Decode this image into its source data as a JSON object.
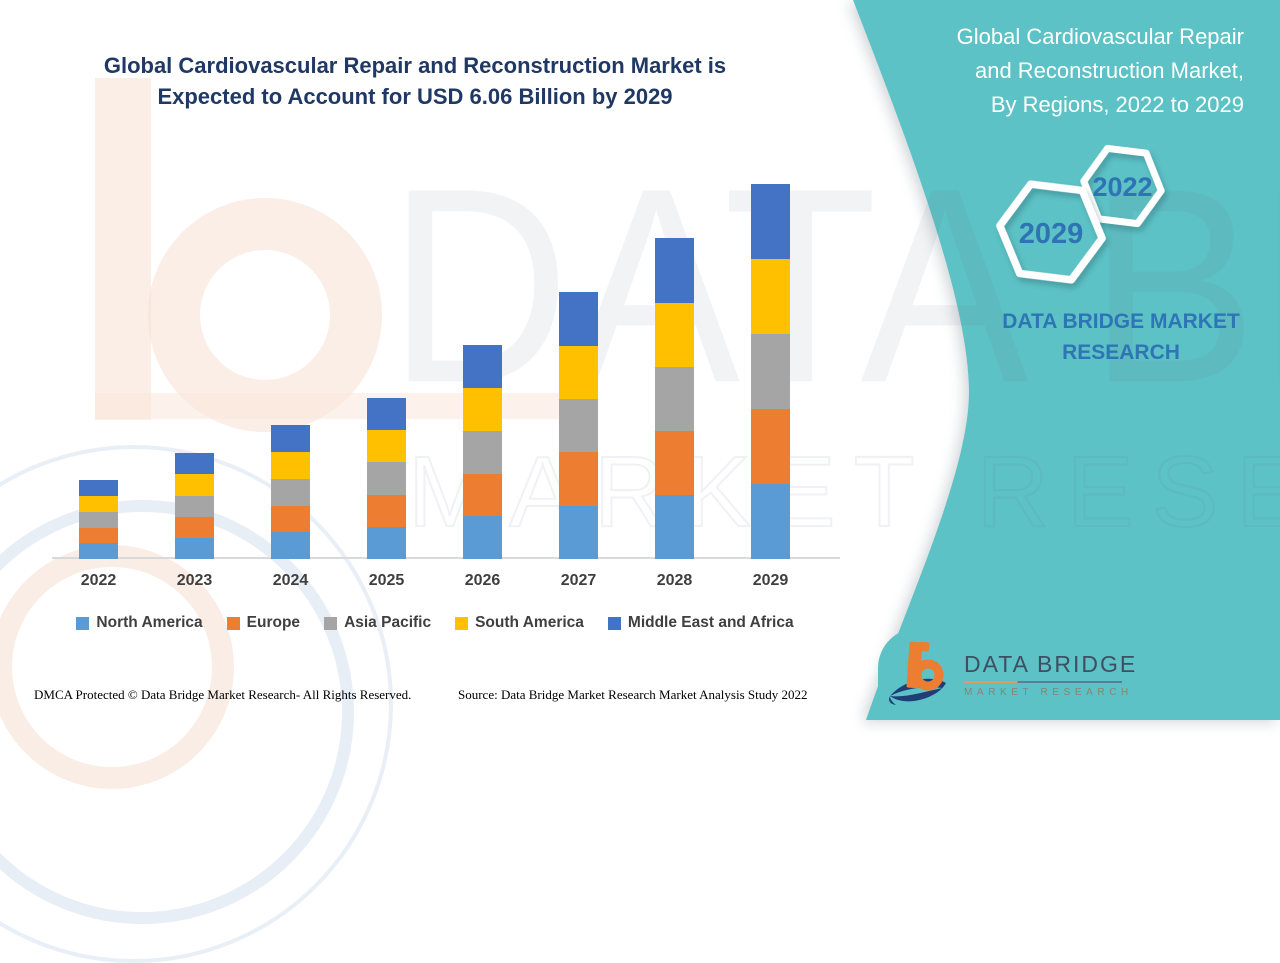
{
  "header": {
    "title_lines": [
      "Global Cardiovascular Repair and Reconstruction Market is",
      "Expected to Account for USD 6.06 Billion by 2029"
    ]
  },
  "sidebar": {
    "title_lines": [
      "Global Cardiovascular Repair",
      "and Reconstruction Market,",
      "By Regions, 2022 to 2029"
    ],
    "hexagons": [
      {
        "year": "2022"
      },
      {
        "year": "2029"
      }
    ],
    "brand_lines": [
      "DATA BRIDGE MARKET",
      "RESEARCH"
    ]
  },
  "chart_data": {
    "type": "bar",
    "stacked": true,
    "title": "Global Cardiovascular Repair and Reconstruction Market, By Regions, 2022 to 2029",
    "unit": "USD Billion",
    "categories": [
      "2022",
      "2023",
      "2024",
      "2025",
      "2026",
      "2027",
      "2028",
      "2029"
    ],
    "totals": [
      1.27,
      1.71,
      2.16,
      2.6,
      3.45,
      4.31,
      5.18,
      6.06
    ],
    "series": [
      {
        "name": "North America",
        "color": "#5b9bd5",
        "values": [
          0.254,
          0.342,
          0.432,
          0.52,
          0.69,
          0.862,
          1.036,
          1.212
        ]
      },
      {
        "name": "Europe",
        "color": "#ed7d31",
        "values": [
          0.254,
          0.342,
          0.432,
          0.52,
          0.69,
          0.862,
          1.036,
          1.212
        ]
      },
      {
        "name": "Asia Pacific",
        "color": "#a5a5a5",
        "values": [
          0.254,
          0.342,
          0.432,
          0.52,
          0.69,
          0.862,
          1.036,
          1.212
        ]
      },
      {
        "name": "South America",
        "color": "#ffc000",
        "values": [
          0.254,
          0.342,
          0.432,
          0.52,
          0.69,
          0.862,
          1.036,
          1.212
        ]
      },
      {
        "name": "Middle East and Africa",
        "color": "#4472c4",
        "values": [
          0.254,
          0.342,
          0.432,
          0.52,
          0.69,
          0.862,
          1.036,
          1.212
        ]
      }
    ],
    "xlabel": "",
    "ylabel": "",
    "ylim": [
      0,
      6.5
    ],
    "grid": false,
    "legend_position": "bottom"
  },
  "footer": {
    "left": "DMCA Protected © Data Bridge Market Research- All Rights Reserved.",
    "source": "Source: Data Bridge Market Research Market Analysis Study 2022"
  },
  "logo": {
    "line1": "DATA BRIDGE",
    "line2": "MARKET RESEARCH"
  },
  "watermark": {
    "line1": "DATA BRIDGE",
    "line2": "MARKET RESEARCH"
  },
  "colors": {
    "teal": "#5cc2c5",
    "navy_title": "#1f3864",
    "hex_year_blue": "#2e74b5",
    "brand_blue": "#2e75b6"
  }
}
